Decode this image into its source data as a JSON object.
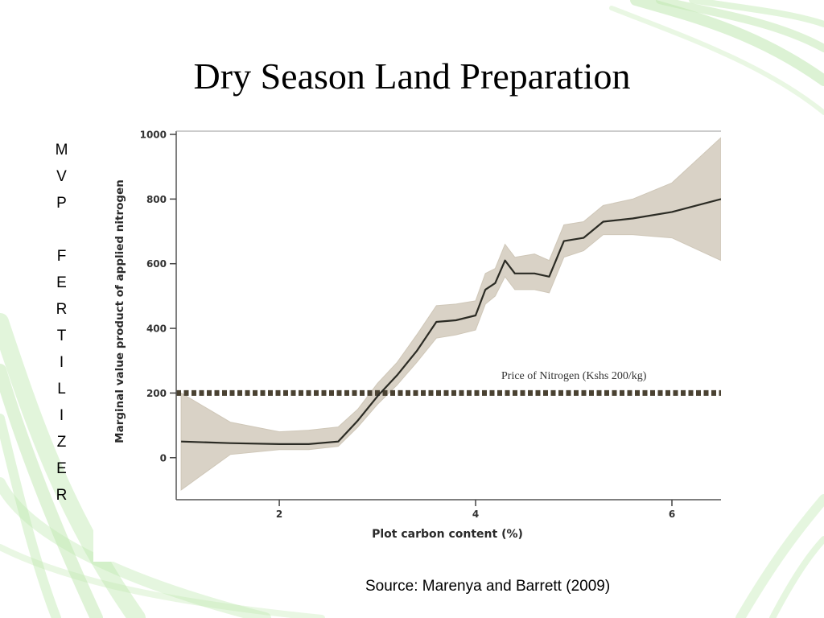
{
  "slide": {
    "title": "Dry Season Land Preparation",
    "side_label": "M\nV\nP\n\nF\nE\nR\nT\nI\nL\nI\nZ\nE\nR",
    "source": "Source: Marenya and Barrett (2009)"
  },
  "colors": {
    "accent_green": "#9fd98f",
    "band": "#d9d2c6",
    "curve": "#2b2b24",
    "price_line": "#4a4232"
  },
  "chart_data": {
    "type": "line",
    "title": "",
    "xlabel": "Plot carbon content (%)",
    "ylabel": "Marginal value product of applied nitrogen",
    "xlim": [
      0.95,
      6.5
    ],
    "ylim": [
      -130,
      1010
    ],
    "x_ticks": [
      2,
      4,
      6
    ],
    "y_ticks": [
      0,
      200,
      400,
      600,
      800,
      1000
    ],
    "x_tick_labels": [
      "2",
      "4",
      "6"
    ],
    "y_tick_labels": [
      "0",
      "200",
      "400",
      "600",
      "800",
      "1000"
    ],
    "grid": false,
    "series": [
      {
        "style": "solid",
        "x": [
          1.0,
          1.5,
          2.0,
          2.3,
          2.6,
          2.8,
          3.0,
          3.2,
          3.4,
          3.6,
          3.8,
          4.0,
          4.1,
          4.2,
          4.3,
          4.4,
          4.6,
          4.75,
          4.9,
          5.1,
          5.3,
          5.6,
          6.0,
          6.5
        ],
        "y": [
          50,
          45,
          42,
          42,
          50,
          115,
          190,
          255,
          330,
          420,
          425,
          440,
          520,
          540,
          610,
          570,
          570,
          560,
          670,
          680,
          730,
          740,
          760,
          800
        ],
        "lower": [
          -100,
          10,
          25,
          25,
          35,
          95,
          165,
          225,
          295,
          370,
          380,
          395,
          475,
          500,
          560,
          520,
          520,
          510,
          620,
          640,
          690,
          690,
          680,
          610
        ],
        "upper": [
          200,
          110,
          80,
          85,
          95,
          150,
          230,
          295,
          380,
          470,
          475,
          485,
          570,
          585,
          660,
          620,
          630,
          610,
          720,
          730,
          780,
          800,
          850,
          990
        ]
      }
    ],
    "reference_line": {
      "y": 200,
      "style": "dashed",
      "label": "Price of Nitrogen (Kshs 200/kg)"
    }
  }
}
